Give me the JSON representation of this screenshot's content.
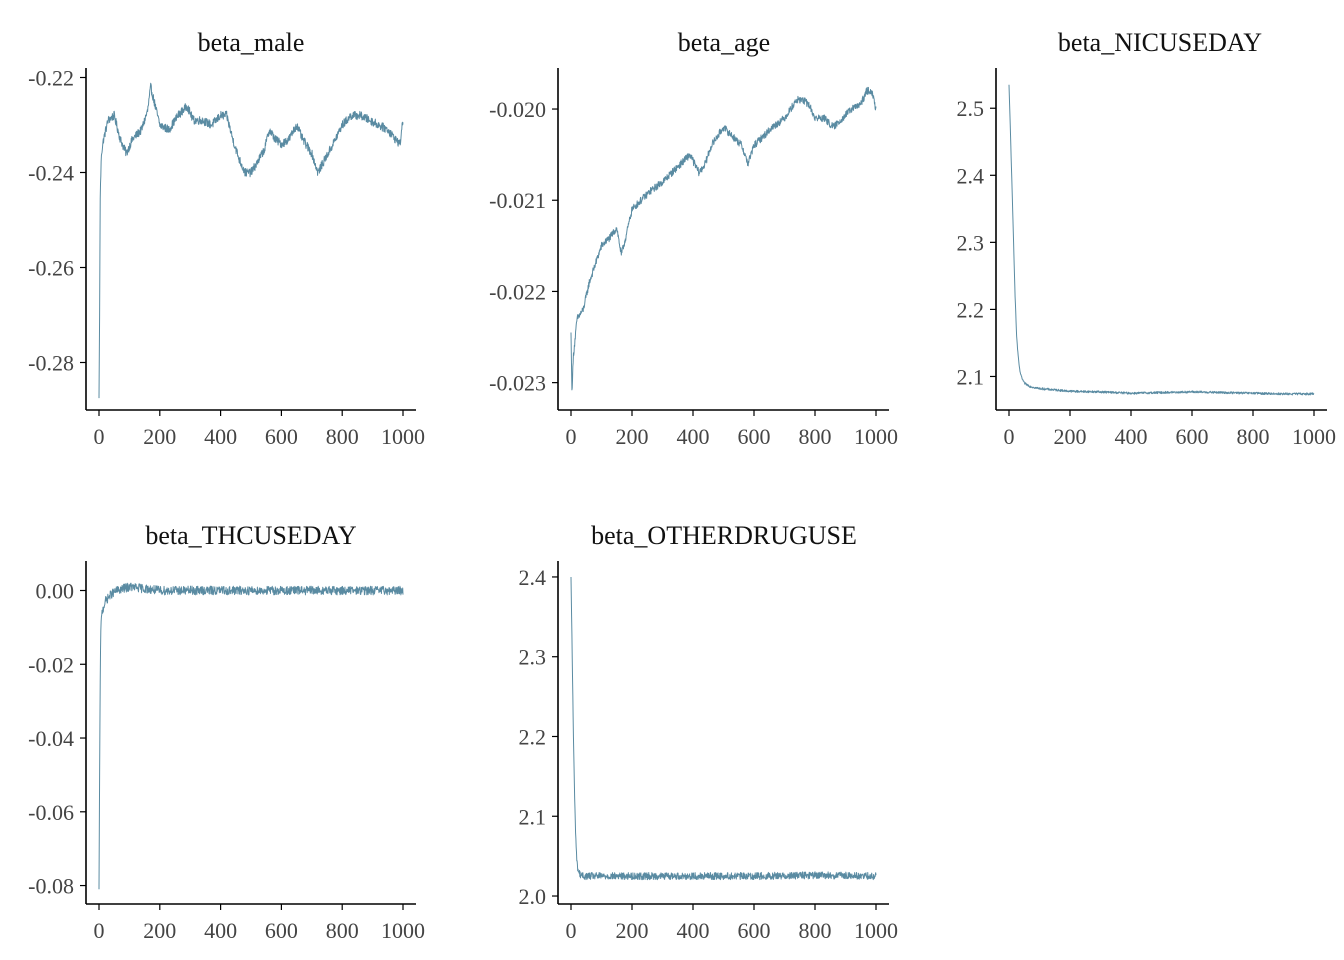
{
  "colors": {
    "trace": "#5a8ba2",
    "axis": "#000000",
    "tick_label": "#444444"
  },
  "chart_data": [
    {
      "type": "line",
      "title": "beta_male",
      "xlabel": "",
      "ylabel": "",
      "xlim": [
        0,
        1000
      ],
      "ylim": [
        -0.29,
        -0.218
      ],
      "xticks": [
        0,
        200,
        400,
        600,
        800,
        1000
      ],
      "yticks": [
        -0.22,
        -0.24,
        -0.26,
        -0.28
      ],
      "ytick_labels": [
        "-0.22",
        "-0.24",
        "-0.26",
        "-0.28"
      ],
      "n_draws": 1000,
      "noise": 0.0009,
      "series": [
        {
          "values": [
            [
              0,
              -0.2875
            ],
            [
              2,
              -0.27
            ],
            [
              4,
              -0.245
            ],
            [
              8,
              -0.236
            ],
            [
              15,
              -0.233
            ],
            [
              30,
              -0.229
            ],
            [
              50,
              -0.228
            ],
            [
              70,
              -0.233
            ],
            [
              90,
              -0.236
            ],
            [
              110,
              -0.233
            ],
            [
              140,
              -0.231
            ],
            [
              160,
              -0.227
            ],
            [
              170,
              -0.222
            ],
            [
              185,
              -0.226
            ],
            [
              200,
              -0.23
            ],
            [
              230,
              -0.231
            ],
            [
              260,
              -0.228
            ],
            [
              290,
              -0.226
            ],
            [
              310,
              -0.229
            ],
            [
              340,
              -0.229
            ],
            [
              370,
              -0.23
            ],
            [
              400,
              -0.228
            ],
            [
              420,
              -0.228
            ],
            [
              440,
              -0.233
            ],
            [
              460,
              -0.237
            ],
            [
              480,
              -0.24
            ],
            [
              500,
              -0.24
            ],
            [
              520,
              -0.238
            ],
            [
              545,
              -0.235
            ],
            [
              560,
              -0.231
            ],
            [
              580,
              -0.233
            ],
            [
              600,
              -0.234
            ],
            [
              625,
              -0.233
            ],
            [
              650,
              -0.23
            ],
            [
              670,
              -0.233
            ],
            [
              700,
              -0.236
            ],
            [
              720,
              -0.24
            ],
            [
              745,
              -0.237
            ],
            [
              770,
              -0.234
            ],
            [
              800,
              -0.23
            ],
            [
              830,
              -0.228
            ],
            [
              860,
              -0.228
            ],
            [
              890,
              -0.229
            ],
            [
              920,
              -0.23
            ],
            [
              950,
              -0.231
            ],
            [
              975,
              -0.233
            ],
            [
              990,
              -0.234
            ],
            [
              1000,
              -0.229
            ]
          ]
        }
      ]
    },
    {
      "type": "line",
      "title": "beta_age",
      "xlabel": "",
      "ylabel": "",
      "xlim": [
        0,
        1000
      ],
      "ylim": [
        -0.0233,
        -0.01955
      ],
      "xticks": [
        0,
        200,
        400,
        600,
        800,
        1000
      ],
      "yticks": [
        -0.02,
        -0.021,
        -0.022,
        -0.023
      ],
      "ytick_labels": [
        "-0.020",
        "-0.021",
        "-0.022",
        "-0.023"
      ],
      "n_draws": 1000,
      "noise": 4e-05,
      "series": [
        {
          "values": [
            [
              0,
              -0.02245
            ],
            [
              3,
              -0.0231
            ],
            [
              8,
              -0.0227
            ],
            [
              20,
              -0.0223
            ],
            [
              40,
              -0.0222
            ],
            [
              60,
              -0.0219
            ],
            [
              80,
              -0.0217
            ],
            [
              100,
              -0.0215
            ],
            [
              130,
              -0.0214
            ],
            [
              150,
              -0.0213
            ],
            [
              165,
              -0.0216
            ],
            [
              180,
              -0.0214
            ],
            [
              200,
              -0.0211
            ],
            [
              230,
              -0.021
            ],
            [
              260,
              -0.0209
            ],
            [
              300,
              -0.0208
            ],
            [
              330,
              -0.0207
            ],
            [
              360,
              -0.0206
            ],
            [
              390,
              -0.0205
            ],
            [
              420,
              -0.0207
            ],
            [
              440,
              -0.0206
            ],
            [
              460,
              -0.0204
            ],
            [
              480,
              -0.0203
            ],
            [
              500,
              -0.0202
            ],
            [
              530,
              -0.0203
            ],
            [
              560,
              -0.0204
            ],
            [
              580,
              -0.0206
            ],
            [
              600,
              -0.0204
            ],
            [
              630,
              -0.0203
            ],
            [
              660,
              -0.0202
            ],
            [
              700,
              -0.0201
            ],
            [
              740,
              -0.0199
            ],
            [
              760,
              -0.0199
            ],
            [
              780,
              -0.01995
            ],
            [
              800,
              -0.0201
            ],
            [
              830,
              -0.0201
            ],
            [
              860,
              -0.0202
            ],
            [
              890,
              -0.0201
            ],
            [
              920,
              -0.02
            ],
            [
              950,
              -0.01995
            ],
            [
              970,
              -0.0198
            ],
            [
              985,
              -0.0198
            ],
            [
              1000,
              -0.02
            ]
          ]
        }
      ]
    },
    {
      "type": "line",
      "title": "beta_NICUSEDAY",
      "xlabel": "",
      "ylabel": "",
      "xlim": [
        0,
        1000
      ],
      "ylim": [
        2.05,
        2.56
      ],
      "xticks": [
        0,
        200,
        400,
        600,
        800,
        1000
      ],
      "yticks": [
        2.1,
        2.2,
        2.3,
        2.4,
        2.5
      ],
      "ytick_labels": [
        "2.1",
        "2.2",
        "2.3",
        "2.4",
        "2.5"
      ],
      "n_draws": 1000,
      "noise": 0.0016,
      "series": [
        {
          "values": [
            [
              0,
              2.535
            ],
            [
              5,
              2.46
            ],
            [
              10,
              2.38
            ],
            [
              15,
              2.3
            ],
            [
              20,
              2.22
            ],
            [
              25,
              2.16
            ],
            [
              30,
              2.13
            ],
            [
              35,
              2.11
            ],
            [
              40,
              2.1
            ],
            [
              50,
              2.09
            ],
            [
              70,
              2.085
            ],
            [
              100,
              2.082
            ],
            [
              150,
              2.08
            ],
            [
              200,
              2.078
            ],
            [
              300,
              2.077
            ],
            [
              400,
              2.075
            ],
            [
              500,
              2.076
            ],
            [
              600,
              2.077
            ],
            [
              700,
              2.076
            ],
            [
              800,
              2.075
            ],
            [
              900,
              2.074
            ],
            [
              1000,
              2.074
            ]
          ]
        }
      ]
    },
    {
      "type": "line",
      "title": "beta_THCUSEDAY",
      "xlabel": "",
      "ylabel": "",
      "xlim": [
        0,
        1000
      ],
      "ylim": [
        -0.085,
        0.008
      ],
      "xticks": [
        0,
        200,
        400,
        600,
        800,
        1000
      ],
      "yticks": [
        0.0,
        -0.02,
        -0.04,
        -0.06,
        -0.08
      ],
      "ytick_labels": [
        "0.00",
        "-0.02",
        "-0.04",
        "-0.06",
        "-0.08"
      ],
      "n_draws": 1000,
      "noise": 0.0012,
      "series": [
        {
          "values": [
            [
              0,
              -0.081
            ],
            [
              2,
              -0.05
            ],
            [
              4,
              -0.025
            ],
            [
              6,
              -0.01
            ],
            [
              10,
              -0.006
            ],
            [
              20,
              -0.003
            ],
            [
              40,
              -0.001
            ],
            [
              60,
              0.0
            ],
            [
              100,
              0.001
            ],
            [
              200,
              0.0
            ],
            [
              300,
              0.0
            ],
            [
              400,
              0.0
            ],
            [
              500,
              0.0
            ],
            [
              600,
              0.0
            ],
            [
              700,
              0.0
            ],
            [
              800,
              0.0
            ],
            [
              900,
              0.0
            ],
            [
              1000,
              0.0
            ]
          ]
        }
      ]
    },
    {
      "type": "line",
      "title": "beta_OTHERDRUGUSE",
      "xlabel": "",
      "ylabel": "",
      "xlim": [
        0,
        1000
      ],
      "ylim": [
        1.99,
        2.42
      ],
      "xticks": [
        0,
        200,
        400,
        600,
        800,
        1000
      ],
      "yticks": [
        2.0,
        2.1,
        2.2,
        2.3,
        2.4
      ],
      "ytick_labels": [
        "2.0",
        "2.1",
        "2.2",
        "2.3",
        "2.4"
      ],
      "n_draws": 1000,
      "noise": 0.0045,
      "series": [
        {
          "values": [
            [
              0,
              2.4
            ],
            [
              4,
              2.3
            ],
            [
              8,
              2.2
            ],
            [
              12,
              2.12
            ],
            [
              16,
              2.07
            ],
            [
              20,
              2.04
            ],
            [
              25,
              2.03
            ],
            [
              35,
              2.025
            ],
            [
              60,
              2.025
            ],
            [
              200,
              2.025
            ],
            [
              400,
              2.025
            ],
            [
              600,
              2.025
            ],
            [
              800,
              2.026
            ],
            [
              1000,
              2.025
            ]
          ]
        }
      ]
    }
  ]
}
